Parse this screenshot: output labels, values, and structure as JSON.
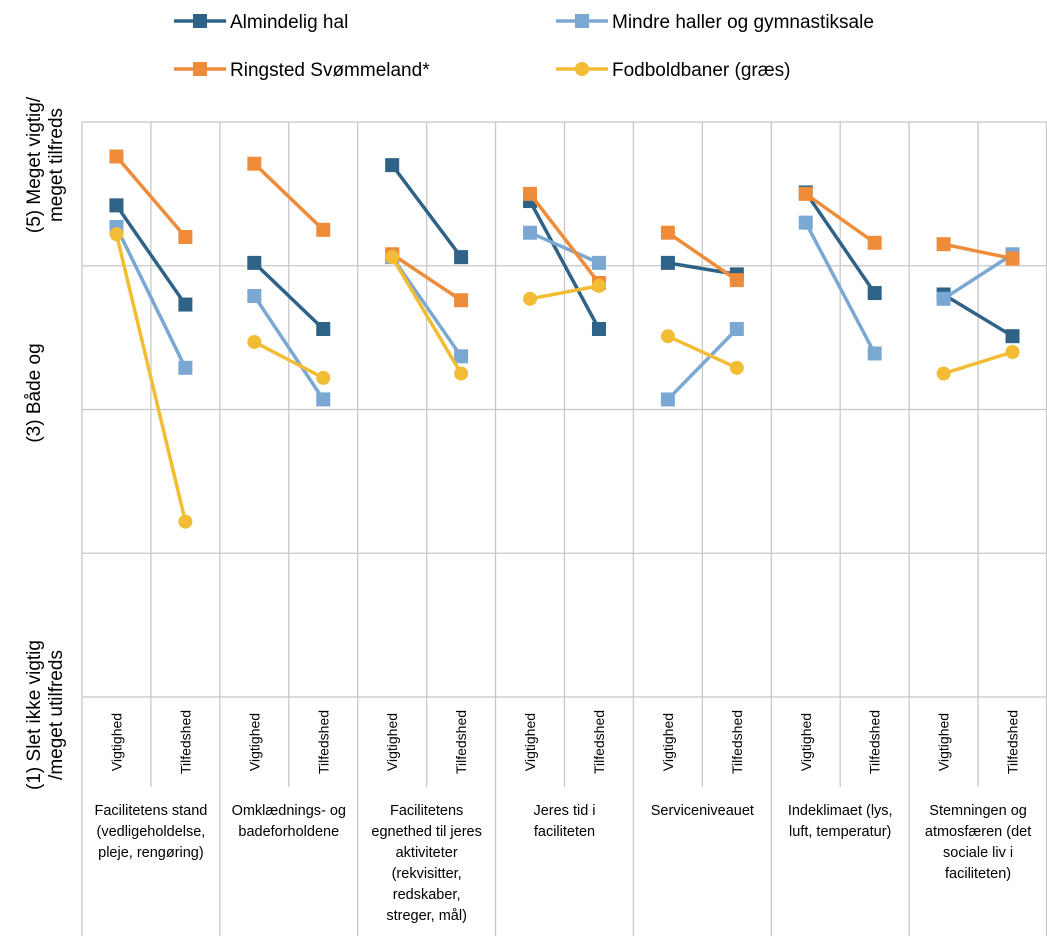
{
  "chart_data": {
    "type": "line",
    "y_axis_labels": [
      {
        "value": 5,
        "lines": [
          "(5) Meget vigtig/",
          "meget tilfreds"
        ]
      },
      {
        "value": 3,
        "lines": [
          "(3) Både og"
        ]
      },
      {
        "value": 1,
        "lines": [
          "(1) Slet ikke vigtig",
          "/meget utilfreds"
        ]
      }
    ],
    "ylim": [
      1,
      5
    ],
    "grid": true,
    "legend_position": "top",
    "sub_categories": [
      "Vigtighed",
      "Tilfedshed"
    ],
    "groups": [
      {
        "label_lines": [
          "Facilitetens stand",
          "(vedligeholdelse,",
          "pleje, rengøring)"
        ]
      },
      {
        "label_lines": [
          "Omklædnings- og",
          "badeforholdene"
        ]
      },
      {
        "label_lines": [
          "Facilitetens",
          "egnethed til jeres",
          "aktiviteter",
          "(rekvisitter,",
          "redskaber,",
          "streger, mål)"
        ]
      },
      {
        "label_lines": [
          "Jeres tid i",
          "faciliteten"
        ]
      },
      {
        "label_lines": [
          "Serviceniveauet"
        ]
      },
      {
        "label_lines": [
          "Indeklimaet (lys,",
          "luft, temperatur)"
        ]
      },
      {
        "label_lines": [
          "Stemningen og",
          "atmosfæren (det",
          "sociale liv i",
          "faciliteten)"
        ]
      }
    ],
    "series": [
      {
        "name": "Almindelig hal",
        "color": "#2e6287",
        "marker": "square",
        "values": [
          [
            4.42,
            3.73
          ],
          [
            4.02,
            3.56
          ],
          [
            4.7,
            4.06
          ],
          [
            4.45,
            3.56
          ],
          [
            4.02,
            3.94
          ],
          [
            4.51,
            3.81
          ],
          [
            3.8,
            3.51
          ]
        ]
      },
      {
        "name": "Mindre haller og gymnastiksale",
        "color": "#7ba7d3",
        "marker": "square",
        "values": [
          [
            4.27,
            3.29
          ],
          [
            3.79,
            3.07
          ],
          [
            4.06,
            3.37
          ],
          [
            4.23,
            4.02
          ],
          [
            3.07,
            3.56
          ],
          [
            4.3,
            3.39
          ],
          [
            3.77,
            4.08
          ]
        ]
      },
      {
        "name": "Ringsted Svømmeland*",
        "color": "#ee8c3a",
        "marker": "square",
        "values": [
          [
            4.76,
            4.2
          ],
          [
            4.71,
            4.25
          ],
          [
            4.08,
            3.76
          ],
          [
            4.5,
            3.88
          ],
          [
            4.23,
            3.9
          ],
          [
            4.5,
            4.16
          ],
          [
            4.15,
            4.05
          ]
        ]
      },
      {
        "name": "Fodboldbaner (græs)",
        "color": "#f2bd34",
        "marker": "circle",
        "values": [
          [
            4.22,
            2.22
          ],
          [
            3.47,
            3.22
          ],
          [
            4.06,
            3.25
          ],
          [
            3.77,
            3.86
          ],
          [
            3.51,
            3.29
          ],
          null,
          [
            3.25,
            3.4
          ]
        ]
      }
    ]
  }
}
